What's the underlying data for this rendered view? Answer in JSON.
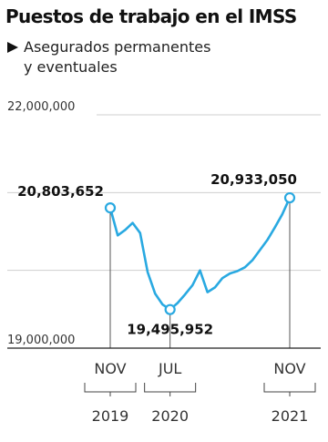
{
  "header": {
    "title": "Puestos de trabajo en el IMSS",
    "subtitle_line1": "Asegurados permanentes",
    "subtitle_line2": "y eventuales"
  },
  "colors": {
    "line": "#29a9e1",
    "grid": "#cfcfcf",
    "axis": "#222222",
    "marker_fill": "#ffffff"
  },
  "chart_data": {
    "type": "line",
    "series": [
      {
        "x": [
          "2019-11",
          "2019-12",
          "2020-01",
          "2020-02",
          "2020-03",
          "2020-04",
          "2020-05",
          "2020-06",
          "2020-07",
          "2020-08",
          "2020-09",
          "2020-10",
          "2020-11",
          "2020-12",
          "2021-01",
          "2021-02",
          "2021-03",
          "2021-04",
          "2021-05",
          "2021-06",
          "2021-07",
          "2021-08",
          "2021-09",
          "2021-10",
          "2021-11"
        ],
        "values": [
          20803652,
          20450000,
          20520000,
          20610000,
          20480000,
          19980000,
          19700000,
          19560000,
          19495952,
          19580000,
          19690000,
          19810000,
          20000000,
          19720000,
          19780000,
          19900000,
          19960000,
          19990000,
          20040000,
          20130000,
          20260000,
          20390000,
          20550000,
          20720000,
          20933050
        ]
      }
    ],
    "ylim": [
      19000000,
      22000000
    ],
    "y_ticks": [
      "22,000,000",
      "19,000,000"
    ],
    "grid": true,
    "annotations": [
      "20,803,652",
      "19,495,952",
      "20,933,050"
    ],
    "x_tick_months": [
      "NOV",
      "JUL",
      "NOV"
    ],
    "x_tick_years": [
      "2019",
      "2020",
      "2021"
    ]
  }
}
